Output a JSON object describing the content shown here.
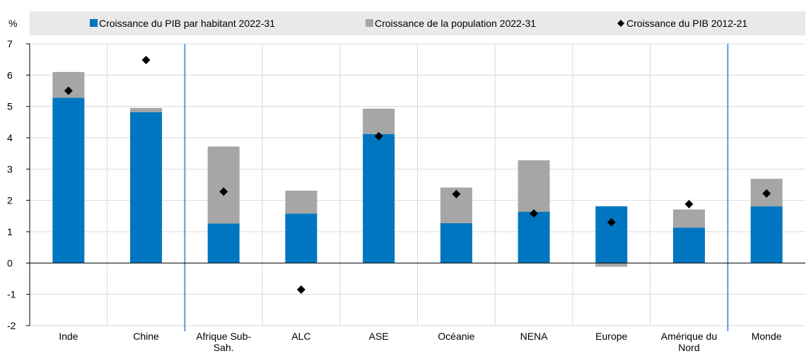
{
  "chart_data": {
    "type": "bar",
    "stacked": true,
    "unit_label": "%",
    "title": "",
    "xlabel": "",
    "ylabel": "",
    "ylim": [
      -2,
      7
    ],
    "yticks": [
      7,
      6,
      5,
      4,
      3,
      2,
      1,
      0,
      -1,
      -2
    ],
    "grid": true,
    "legend_position": "top",
    "categories": [
      "Inde",
      "Chine",
      "Afrique Sub-Sah.",
      "ALC",
      "ASE",
      "Océanie",
      "NENA",
      "Europe",
      "Amérique du Nord",
      "Monde"
    ],
    "category_label_lines": [
      [
        "Inde"
      ],
      [
        "Chine"
      ],
      [
        "Afrique Sub-",
        "Sah."
      ],
      [
        "ALC"
      ],
      [
        "ASE"
      ],
      [
        "Océanie"
      ],
      [
        "NENA"
      ],
      [
        "Europe"
      ],
      [
        "Amérique du",
        "Nord"
      ],
      [
        "Monde"
      ]
    ],
    "group_separators_after": [
      "Chine",
      "Amérique du Nord"
    ],
    "series": [
      {
        "name": "Croissance du PIB par habitant 2022-31",
        "type": "bar",
        "color": "#0076c0",
        "values": [
          5.28,
          4.82,
          1.26,
          1.58,
          4.12,
          1.27,
          1.64,
          1.81,
          1.13,
          1.81
        ]
      },
      {
        "name": "Croissance de la population 2022-31",
        "type": "bar",
        "color": "#a6a6a6",
        "values": [
          0.82,
          0.13,
          2.46,
          0.73,
          0.81,
          1.14,
          1.64,
          -0.12,
          0.58,
          0.88
        ]
      },
      {
        "name": "Croissance du PIB 2012-21",
        "type": "marker",
        "marker": "diamond",
        "color": "#000000",
        "values": [
          5.5,
          6.48,
          2.28,
          -0.85,
          4.05,
          2.2,
          1.58,
          1.3,
          1.88,
          2.22
        ]
      }
    ]
  }
}
